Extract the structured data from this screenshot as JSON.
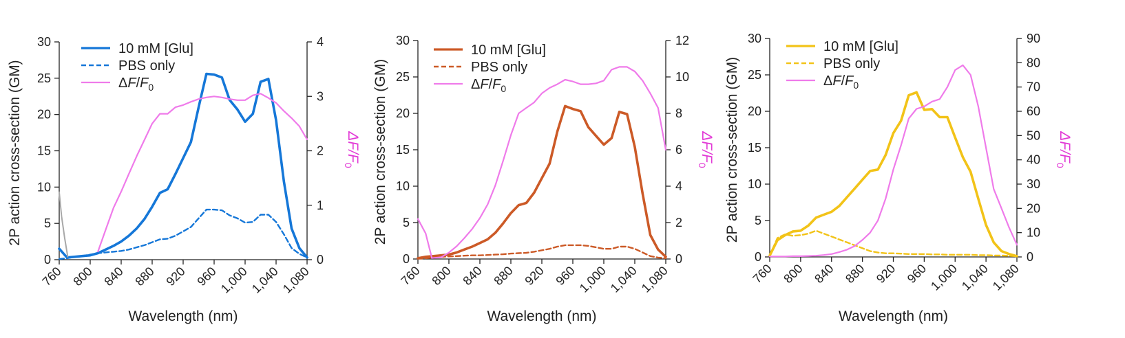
{
  "chart_data": [
    {
      "type": "line",
      "panel": "left",
      "title": "",
      "xlabel": "Wavelength (nm)",
      "ylabel": "2P action cross-section (GM)",
      "y2label": "ΔF/F0",
      "xlim": [
        760,
        1080
      ],
      "ylim": [
        0,
        30
      ],
      "y2lim": [
        0,
        4
      ],
      "xticks": [
        "760",
        "800",
        "840",
        "880",
        "920",
        "960",
        "1,000",
        "1,040",
        "1,080"
      ],
      "yticks": [
        "0",
        "5",
        "10",
        "15",
        "20",
        "25",
        "30"
      ],
      "y2ticks": [
        "0",
        "1",
        "2",
        "3",
        "4"
      ],
      "colors": {
        "primary": "#1577d8",
        "ratio": "#ef7bea",
        "ratio_title": "#e23ad6",
        "artifact": "#a8a8a8"
      },
      "series": [
        {
          "name": "10 mM [Glu]",
          "style": "solid",
          "axis": "left",
          "x": [
            760,
            770,
            780,
            790,
            800,
            810,
            820,
            830,
            840,
            850,
            860,
            870,
            880,
            890,
            900,
            910,
            920,
            930,
            940,
            950,
            960,
            970,
            980,
            990,
            1000,
            1010,
            1020,
            1030,
            1040,
            1050,
            1060,
            1070,
            1080
          ],
          "y": [
            1.5,
            0.3,
            0.4,
            0.5,
            0.6,
            0.9,
            1.4,
            1.9,
            2.5,
            3.3,
            4.3,
            5.6,
            7.3,
            9.2,
            9.7,
            11.8,
            14.0,
            16.2,
            21.0,
            25.6,
            25.5,
            25.1,
            22.0,
            20.7,
            19.0,
            20.1,
            24.5,
            24.9,
            19.2,
            10.8,
            4.3,
            1.6,
            0.3
          ]
        },
        {
          "name": "PBS only",
          "style": "dashed",
          "axis": "left",
          "x": [
            760,
            770,
            780,
            790,
            800,
            810,
            820,
            830,
            840,
            850,
            860,
            870,
            880,
            890,
            900,
            910,
            920,
            930,
            940,
            950,
            960,
            970,
            980,
            990,
            1000,
            1010,
            1020,
            1030,
            1040,
            1050,
            1060,
            1070,
            1080
          ],
          "y": [
            0.1,
            0.2,
            0.4,
            0.5,
            0.7,
            0.9,
            1.0,
            1.1,
            1.2,
            1.4,
            1.7,
            2.0,
            2.4,
            2.8,
            2.9,
            3.3,
            3.9,
            4.5,
            5.7,
            6.9,
            6.9,
            6.8,
            6.1,
            5.7,
            5.1,
            5.2,
            6.2,
            6.2,
            5.2,
            3.5,
            1.6,
            0.8,
            0.3
          ]
        },
        {
          "name": "ΔF/F0",
          "style": "solid",
          "axis": "right",
          "x": [
            810,
            820,
            830,
            840,
            850,
            860,
            870,
            880,
            890,
            900,
            910,
            920,
            930,
            940,
            950,
            960,
            970,
            980,
            990,
            1000,
            1010,
            1020,
            1030,
            1040,
            1050,
            1060,
            1070,
            1080
          ],
          "y": [
            0.15,
            0.55,
            0.95,
            1.25,
            1.58,
            1.9,
            2.2,
            2.5,
            2.68,
            2.68,
            2.8,
            2.84,
            2.9,
            2.95,
            2.98,
            3.0,
            2.98,
            2.95,
            2.93,
            2.93,
            3.02,
            3.05,
            2.97,
            2.88,
            2.73,
            2.6,
            2.45,
            2.21
          ]
        },
        {
          "name": "artifact",
          "style": "solid",
          "axis": "left",
          "legend": false,
          "x": [
            760,
            763,
            767,
            771
          ],
          "y": [
            9.3,
            6.0,
            3.0,
            0.4
          ]
        }
      ],
      "legend": [
        "10 mM [Glu]",
        "PBS only",
        "ΔF/F0"
      ],
      "legend_position": "top-left"
    },
    {
      "type": "line",
      "panel": "middle",
      "title": "",
      "xlabel": "Wavelength (nm)",
      "ylabel": "2P action cross-section (GM)",
      "y2label": "ΔF/F0",
      "xlim": [
        760,
        1080
      ],
      "ylim": [
        0,
        30
      ],
      "y2lim": [
        0,
        12
      ],
      "xticks": [
        "760",
        "800",
        "840",
        "880",
        "920",
        "960",
        "1,000",
        "1,040",
        "1,080"
      ],
      "yticks": [
        "0",
        "5",
        "10",
        "15",
        "20",
        "25",
        "30"
      ],
      "y2ticks": [
        "0",
        "2",
        "4",
        "6",
        "8",
        "10",
        "12"
      ],
      "colors": {
        "primary": "#cc5a27",
        "ratio": "#ef7bea",
        "ratio_title": "#e23ad6"
      },
      "series": [
        {
          "name": "10 mM [Glu]",
          "style": "solid",
          "axis": "left",
          "x": [
            760,
            770,
            780,
            790,
            800,
            810,
            820,
            830,
            840,
            850,
            860,
            870,
            880,
            890,
            900,
            910,
            920,
            930,
            940,
            950,
            960,
            970,
            980,
            990,
            1000,
            1010,
            1020,
            1030,
            1040,
            1050,
            1060,
            1070,
            1080
          ],
          "y": [
            0.1,
            0.3,
            0.4,
            0.5,
            0.6,
            0.9,
            1.3,
            1.7,
            2.2,
            2.7,
            3.6,
            4.9,
            6.3,
            7.4,
            7.7,
            9.1,
            11.1,
            13.1,
            17.5,
            21.0,
            20.6,
            20.3,
            18.1,
            16.9,
            15.7,
            16.6,
            20.2,
            19.9,
            15.4,
            9.0,
            3.3,
            1.3,
            0.3
          ]
        },
        {
          "name": "PBS only",
          "style": "dashed",
          "axis": "left",
          "x": [
            760,
            770,
            780,
            790,
            800,
            810,
            820,
            830,
            840,
            850,
            860,
            870,
            880,
            890,
            900,
            910,
            920,
            930,
            940,
            950,
            960,
            970,
            980,
            990,
            1000,
            1010,
            1020,
            1030,
            1040,
            1050,
            1060,
            1070,
            1080
          ],
          "y": [
            0.05,
            0.1,
            0.2,
            0.3,
            0.35,
            0.4,
            0.45,
            0.5,
            0.5,
            0.55,
            0.6,
            0.65,
            0.75,
            0.8,
            0.85,
            1.0,
            1.2,
            1.4,
            1.7,
            1.9,
            1.9,
            1.9,
            1.8,
            1.6,
            1.4,
            1.4,
            1.7,
            1.7,
            1.4,
            0.9,
            0.4,
            0.2,
            0.1
          ]
        },
        {
          "name": "ΔF/F0",
          "style": "solid",
          "axis": "right",
          "x": [
            760,
            770,
            778,
            790,
            800,
            810,
            820,
            830,
            840,
            850,
            860,
            870,
            880,
            890,
            900,
            910,
            920,
            930,
            940,
            950,
            960,
            970,
            980,
            990,
            1000,
            1010,
            1020,
            1030,
            1040,
            1050,
            1060,
            1070,
            1080
          ],
          "y": [
            2.2,
            1.4,
            0.05,
            0.1,
            0.35,
            0.7,
            1.15,
            1.65,
            2.25,
            3.0,
            4.05,
            5.4,
            6.8,
            8.0,
            8.3,
            8.6,
            9.1,
            9.4,
            9.6,
            9.85,
            9.75,
            9.6,
            9.6,
            9.65,
            9.8,
            10.4,
            10.55,
            10.55,
            10.3,
            9.8,
            9.1,
            8.3,
            6.0
          ]
        }
      ],
      "legend": [
        "10 mM [Glu]",
        "PBS only",
        "ΔF/F0"
      ],
      "legend_position": "top-left"
    },
    {
      "type": "line",
      "panel": "right",
      "title": "",
      "xlabel": "Wavelength (nm)",
      "ylabel": "2P action cross-section (GM)",
      "y2label": "ΔF/F0",
      "xlim": [
        760,
        1080
      ],
      "ylim": [
        0,
        30
      ],
      "y2lim": [
        0,
        90
      ],
      "xticks": [
        "760",
        "800",
        "840",
        "880",
        "920",
        "960",
        "1,000",
        "1,040",
        "1,080"
      ],
      "yticks": [
        "0",
        "5",
        "10",
        "15",
        "20",
        "25",
        "30"
      ],
      "y2ticks": [
        "0",
        "10",
        "20",
        "30",
        "40",
        "50",
        "60",
        "70",
        "80",
        "90"
      ],
      "colors": {
        "primary": "#f2c318",
        "ratio": "#ef7bea",
        "ratio_title": "#e23ad6"
      },
      "series": [
        {
          "name": "10 mM [Glu]",
          "style": "solid",
          "axis": "left",
          "x": [
            760,
            770,
            780,
            790,
            800,
            810,
            820,
            830,
            840,
            850,
            860,
            870,
            880,
            890,
            900,
            910,
            920,
            930,
            940,
            950,
            960,
            970,
            980,
            990,
            1000,
            1010,
            1020,
            1030,
            1040,
            1050,
            1060,
            1070,
            1080
          ],
          "y": [
            0.2,
            2.3,
            3.0,
            3.5,
            3.6,
            4.3,
            5.4,
            5.8,
            6.2,
            7.0,
            8.2,
            9.4,
            10.6,
            11.8,
            12.0,
            14.0,
            17.0,
            18.7,
            22.2,
            22.6,
            20.2,
            20.3,
            19.2,
            19.2,
            16.4,
            13.7,
            11.7,
            8.0,
            4.4,
            2.0,
            0.8,
            0.4,
            0.1
          ]
        },
        {
          "name": "PBS only",
          "style": "dashed",
          "axis": "left",
          "x": [
            760,
            770,
            780,
            790,
            800,
            810,
            820,
            830,
            840,
            850,
            860,
            870,
            880,
            890,
            900,
            910,
            920,
            930,
            940,
            950,
            960,
            970,
            980,
            990,
            1000,
            1010,
            1020,
            1030,
            1040,
            1050,
            1060,
            1070,
            1080
          ],
          "y": [
            0.2,
            2.6,
            3.1,
            2.9,
            3.0,
            3.2,
            3.6,
            3.2,
            2.8,
            2.4,
            2.0,
            1.6,
            1.2,
            0.8,
            0.6,
            0.5,
            0.5,
            0.45,
            0.4,
            0.4,
            0.4,
            0.35,
            0.35,
            0.3,
            0.3,
            0.3,
            0.3,
            0.25,
            0.25,
            0.2,
            0.2,
            0.15,
            0.1
          ]
        },
        {
          "name": "ΔF/F0",
          "style": "solid",
          "axis": "right",
          "x": [
            760,
            770,
            780,
            790,
            800,
            810,
            820,
            830,
            840,
            850,
            860,
            870,
            880,
            890,
            900,
            910,
            920,
            930,
            940,
            950,
            960,
            970,
            980,
            990,
            1000,
            1010,
            1020,
            1030,
            1040,
            1050,
            1060,
            1070,
            1080
          ],
          "y": [
            0.2,
            0.2,
            0.2,
            0.3,
            0.3,
            0.4,
            0.5,
            0.8,
            1.2,
            2.0,
            3.0,
            4.5,
            7.0,
            10.0,
            15.0,
            24.0,
            36.0,
            46.0,
            57.0,
            61.0,
            62.0,
            64.0,
            65.0,
            70.0,
            77.0,
            79.0,
            75.0,
            62.0,
            45.0,
            28.0,
            20.0,
            12.0,
            5.0
          ]
        }
      ],
      "legend": [
        "10 mM [Glu]",
        "PBS only",
        "ΔF/F0"
      ],
      "legend_position": "top-left"
    }
  ]
}
